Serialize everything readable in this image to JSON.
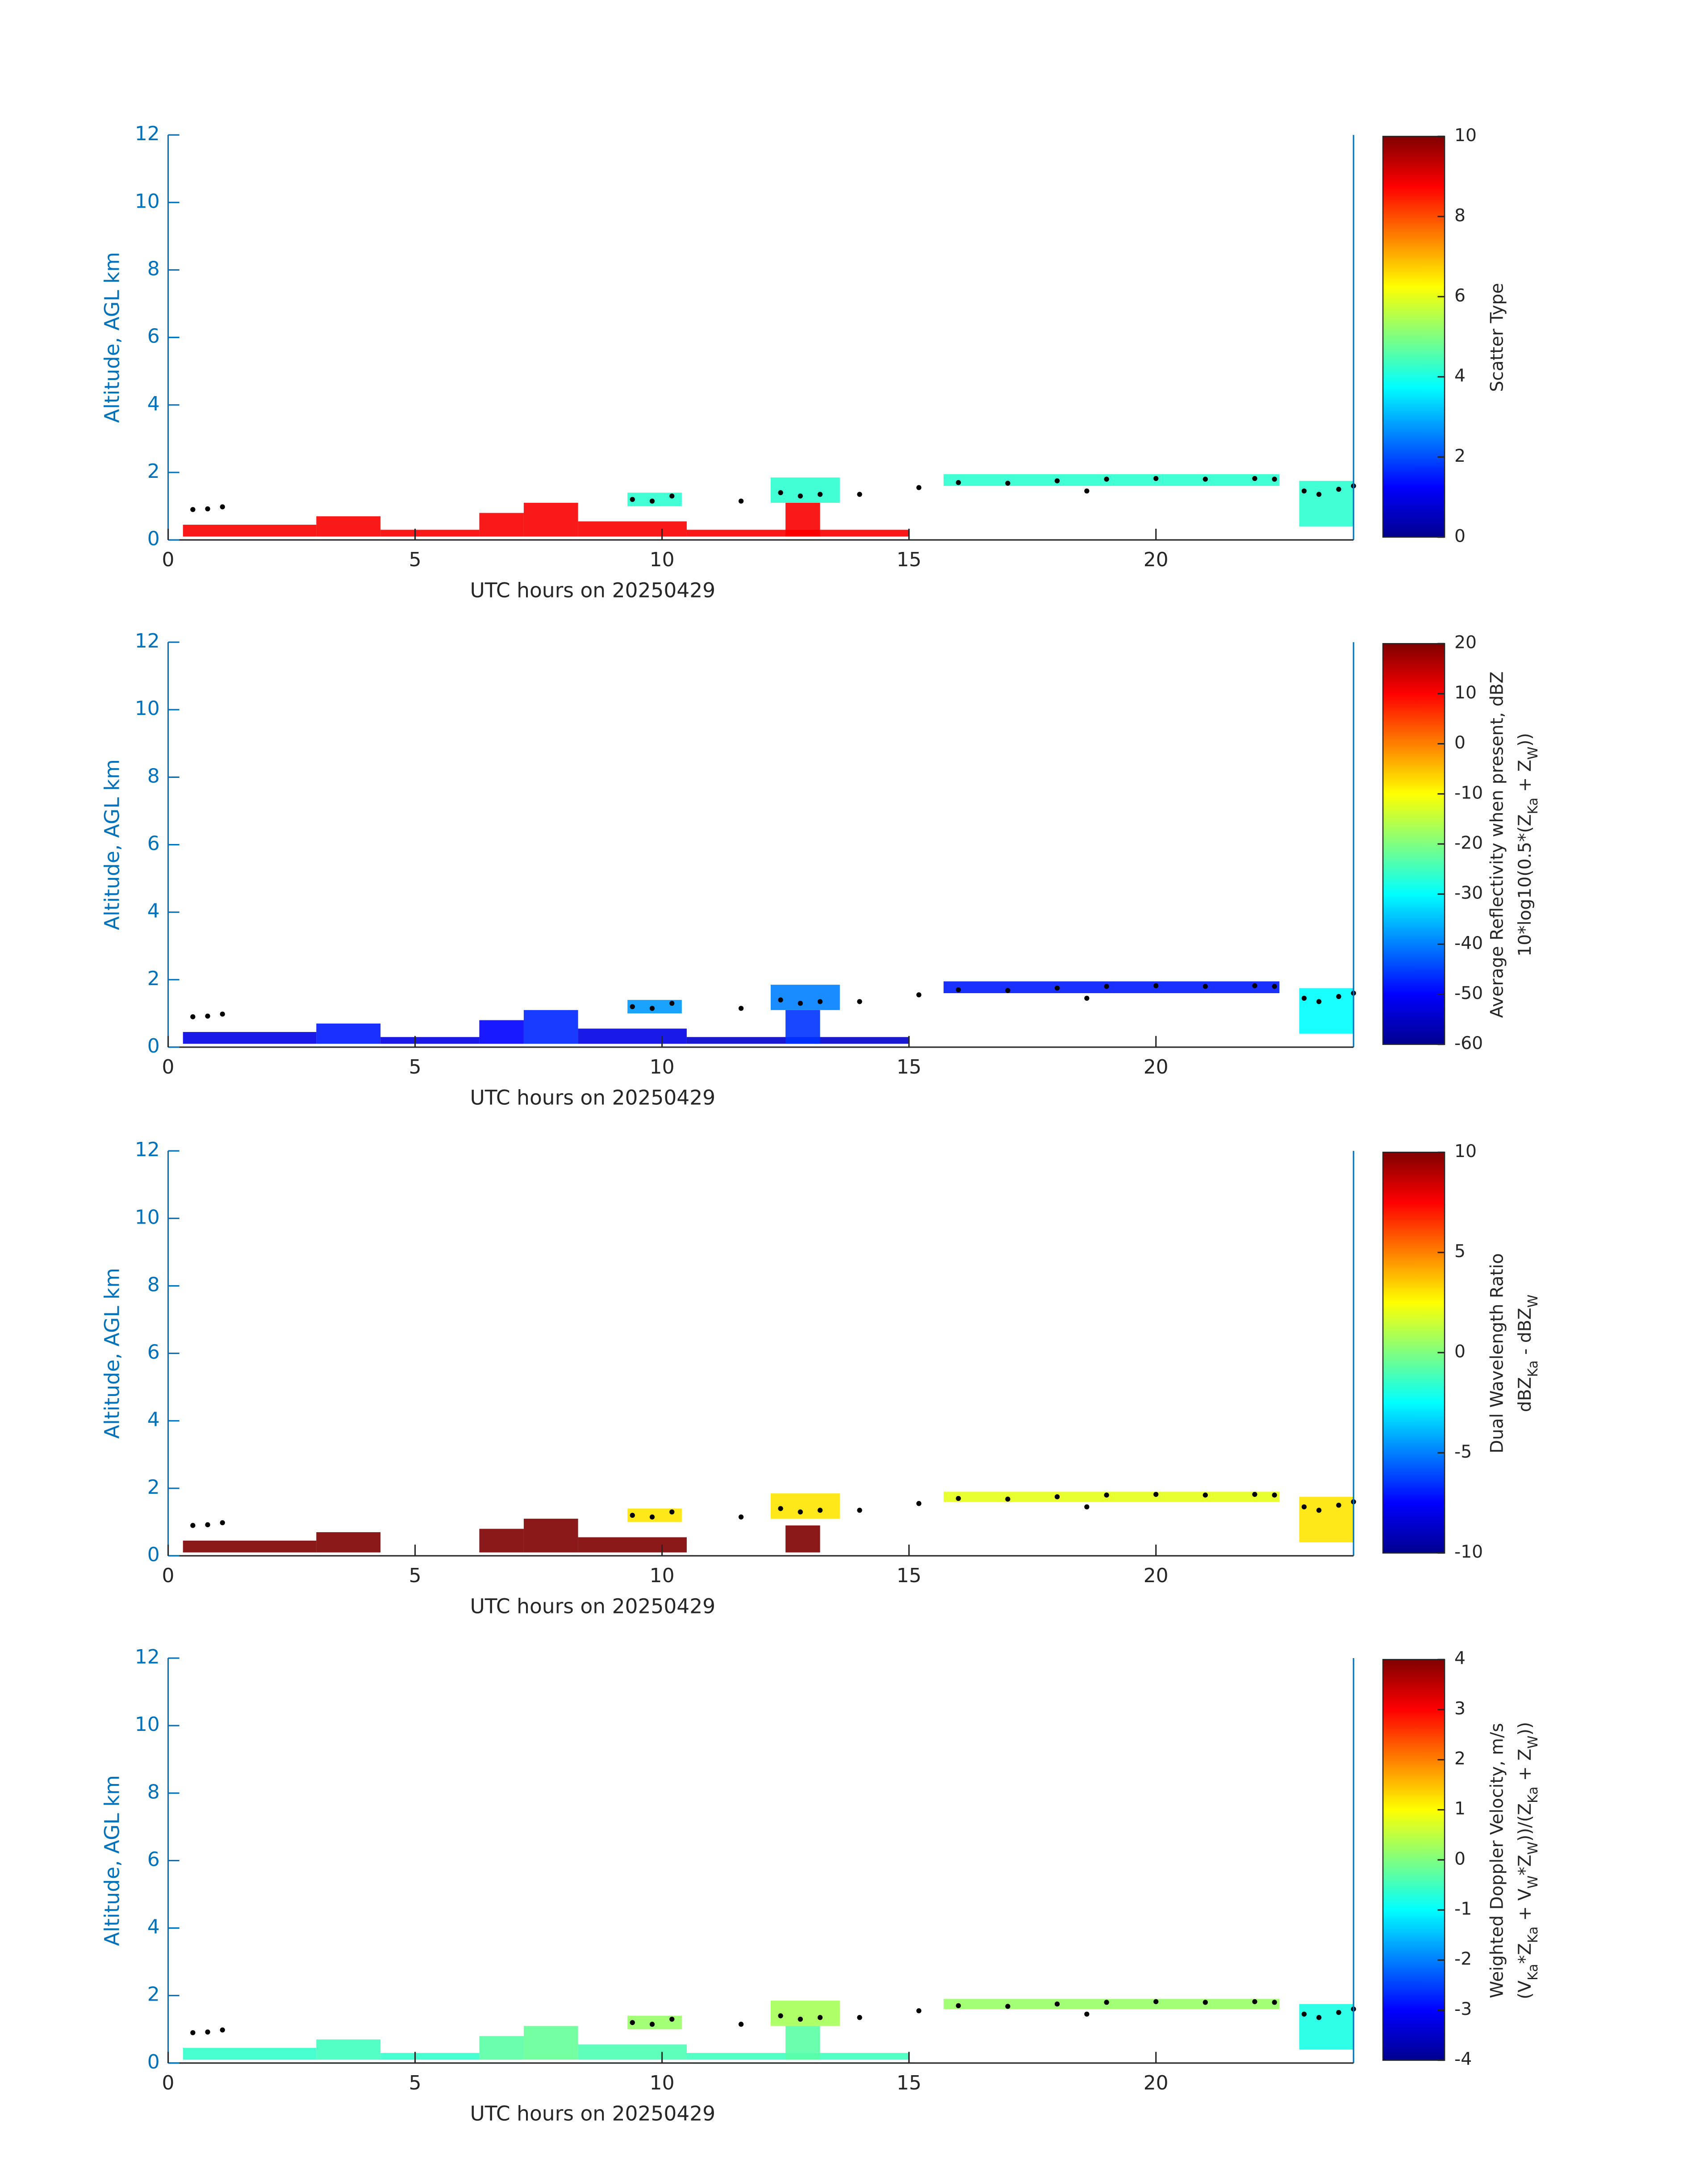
{
  "chart_data": [
    {
      "type": "heatmap",
      "colormap": "jet",
      "xlabel": "UTC hours on 20250429",
      "ylabel": "Altitude, AGL km",
      "colorbar_label": [
        [
          {
            "text": "Scatter Type"
          }
        ]
      ],
      "xlim": [
        0,
        24
      ],
      "xticks": [
        0,
        5,
        10,
        15,
        20
      ],
      "ylim": [
        0,
        12
      ],
      "yticks": [
        0,
        2,
        4,
        6,
        8,
        10,
        12
      ],
      "clim": [
        0,
        10
      ],
      "cticks": [
        0,
        2,
        4,
        6,
        8,
        10
      ],
      "cells": [
        {
          "x": [
            0.3,
            3.0
          ],
          "y": [
            0.1,
            0.45
          ],
          "value": 8.8
        },
        {
          "x": [
            3.0,
            4.3
          ],
          "y": [
            0.1,
            0.7
          ],
          "value": 8.8
        },
        {
          "x": [
            4.3,
            6.3
          ],
          "y": [
            0.1,
            0.3
          ],
          "value": 8.8
        },
        {
          "x": [
            6.3,
            7.2
          ],
          "y": [
            0.1,
            0.8
          ],
          "value": 8.8
        },
        {
          "x": [
            7.2,
            8.3
          ],
          "y": [
            0.1,
            1.1
          ],
          "value": 8.8
        },
        {
          "x": [
            8.3,
            10.5
          ],
          "y": [
            0.1,
            0.55
          ],
          "value": 8.8
        },
        {
          "x": [
            10.5,
            15.0
          ],
          "y": [
            0.1,
            0.3
          ],
          "value": 8.8
        },
        {
          "x": [
            12.5,
            13.2
          ],
          "y": [
            0.1,
            1.1
          ],
          "value": 8.8
        },
        {
          "x": [
            9.3,
            10.4
          ],
          "y": [
            1.0,
            1.4
          ],
          "value": 4.2
        },
        {
          "x": [
            12.2,
            13.6
          ],
          "y": [
            1.1,
            1.85
          ],
          "value": 4.2
        },
        {
          "x": [
            15.7,
            22.5
          ],
          "y": [
            1.6,
            1.95
          ],
          "value": 4.2
        },
        {
          "x": [
            22.9,
            24.0
          ],
          "y": [
            0.4,
            1.75
          ],
          "value": 4.2
        }
      ],
      "points": {
        "color": "#000000",
        "x": [
          0.5,
          0.8,
          1.1,
          9.4,
          9.8,
          10.2,
          11.6,
          12.4,
          12.8,
          13.2,
          14.0,
          15.2,
          16.0,
          17.0,
          18.0,
          18.6,
          19.0,
          20.0,
          21.0,
          22.0,
          22.4,
          23.0,
          23.3,
          23.7,
          24.0
        ],
        "y": [
          0.9,
          0.92,
          0.98,
          1.2,
          1.15,
          1.3,
          1.15,
          1.4,
          1.3,
          1.35,
          1.35,
          1.55,
          1.7,
          1.68,
          1.75,
          1.45,
          1.8,
          1.82,
          1.8,
          1.82,
          1.8,
          1.45,
          1.35,
          1.5,
          1.6
        ]
      }
    },
    {
      "type": "heatmap",
      "colormap": "jet",
      "xlabel": "UTC hours on 20250429",
      "ylabel": "Altitude, AGL km",
      "colorbar_label": [
        [
          {
            "text": "Average Reflectivity when present, dBZ"
          }
        ],
        [
          {
            "text": "10*log10(0.5*(Z"
          },
          {
            "text": "Ka",
            "sub": true
          },
          {
            "text": " + Z"
          },
          {
            "text": "W",
            "sub": true
          },
          {
            "text": "))"
          }
        ]
      ],
      "xlim": [
        0,
        24
      ],
      "xticks": [
        0,
        5,
        10,
        15,
        20
      ],
      "ylim": [
        0,
        12
      ],
      "yticks": [
        0,
        2,
        4,
        6,
        8,
        10,
        12
      ],
      "clim": [
        -60,
        20
      ],
      "cticks": [
        -60,
        -50,
        -40,
        -30,
        -20,
        -10,
        0,
        10,
        20
      ],
      "cells": [
        {
          "x": [
            0.3,
            3.0
          ],
          "y": [
            0.1,
            0.45
          ],
          "value": -52
        },
        {
          "x": [
            3.0,
            4.3
          ],
          "y": [
            0.1,
            0.7
          ],
          "value": -48
        },
        {
          "x": [
            4.3,
            6.3
          ],
          "y": [
            0.1,
            0.3
          ],
          "value": -52
        },
        {
          "x": [
            6.3,
            7.2
          ],
          "y": [
            0.1,
            0.8
          ],
          "value": -50
        },
        {
          "x": [
            7.2,
            8.3
          ],
          "y": [
            0.1,
            1.1
          ],
          "value": -47
        },
        {
          "x": [
            8.3,
            10.5
          ],
          "y": [
            0.1,
            0.55
          ],
          "value": -52
        },
        {
          "x": [
            10.5,
            15.0
          ],
          "y": [
            0.1,
            0.3
          ],
          "value": -54
        },
        {
          "x": [
            12.5,
            13.2
          ],
          "y": [
            0.1,
            1.1
          ],
          "value": -46
        },
        {
          "x": [
            9.3,
            10.4
          ],
          "y": [
            1.0,
            1.4
          ],
          "value": -38
        },
        {
          "x": [
            12.2,
            13.6
          ],
          "y": [
            1.1,
            1.85
          ],
          "value": -40
        },
        {
          "x": [
            15.7,
            22.5
          ],
          "y": [
            1.6,
            1.95
          ],
          "value": -48
        },
        {
          "x": [
            22.9,
            24.0
          ],
          "y": [
            0.4,
            1.75
          ],
          "value": -30
        }
      ],
      "points": {
        "color": "#000000",
        "x": [
          0.5,
          0.8,
          1.1,
          9.4,
          9.8,
          10.2,
          11.6,
          12.4,
          12.8,
          13.2,
          14.0,
          15.2,
          16.0,
          17.0,
          18.0,
          18.6,
          19.0,
          20.0,
          21.0,
          22.0,
          22.4,
          23.0,
          23.3,
          23.7,
          24.0
        ],
        "y": [
          0.9,
          0.92,
          0.98,
          1.2,
          1.15,
          1.3,
          1.15,
          1.4,
          1.3,
          1.35,
          1.35,
          1.55,
          1.7,
          1.68,
          1.75,
          1.45,
          1.8,
          1.82,
          1.8,
          1.82,
          1.8,
          1.45,
          1.35,
          1.5,
          1.6
        ]
      }
    },
    {
      "type": "heatmap",
      "colormap": "jet",
      "xlabel": "UTC hours on 20250429",
      "ylabel": "Altitude, AGL km",
      "colorbar_label": [
        [
          {
            "text": "Dual Wavelength Ratio"
          }
        ],
        [
          {
            "text": "dBZ"
          },
          {
            "text": "Ka",
            "sub": true
          },
          {
            "text": " - dBZ"
          },
          {
            "text": "W",
            "sub": true
          }
        ]
      ],
      "xlim": [
        0,
        24
      ],
      "xticks": [
        0,
        5,
        10,
        15,
        20
      ],
      "ylim": [
        0,
        12
      ],
      "yticks": [
        0,
        2,
        4,
        6,
        8,
        10,
        12
      ],
      "clim": [
        -10,
        10
      ],
      "cticks": [
        -10,
        -5,
        0,
        5,
        10
      ],
      "cells": [
        {
          "x": [
            0.3,
            3.0
          ],
          "y": [
            0.1,
            0.45
          ],
          "value": 10
        },
        {
          "x": [
            3.0,
            4.3
          ],
          "y": [
            0.1,
            0.7
          ],
          "value": 10
        },
        {
          "x": [
            6.3,
            7.2
          ],
          "y": [
            0.1,
            0.8
          ],
          "value": 10
        },
        {
          "x": [
            7.2,
            8.3
          ],
          "y": [
            0.1,
            1.1
          ],
          "value": 10
        },
        {
          "x": [
            8.3,
            10.5
          ],
          "y": [
            0.1,
            0.55
          ],
          "value": 10
        },
        {
          "x": [
            12.5,
            13.2
          ],
          "y": [
            0.1,
            0.9
          ],
          "value": 10
        },
        {
          "x": [
            9.3,
            10.4
          ],
          "y": [
            1.0,
            1.4
          ],
          "value": 3
        },
        {
          "x": [
            12.2,
            13.6
          ],
          "y": [
            1.1,
            1.85
          ],
          "value": 3
        },
        {
          "x": [
            15.7,
            22.5
          ],
          "y": [
            1.6,
            1.9
          ],
          "value": 2
        },
        {
          "x": [
            22.9,
            24.0
          ],
          "y": [
            0.4,
            1.75
          ],
          "value": 3
        }
      ],
      "points": {
        "color": "#000000",
        "x": [
          0.5,
          0.8,
          1.1,
          9.4,
          9.8,
          10.2,
          11.6,
          12.4,
          12.8,
          13.2,
          14.0,
          15.2,
          16.0,
          17.0,
          18.0,
          18.6,
          19.0,
          20.0,
          21.0,
          22.0,
          22.4,
          23.0,
          23.3,
          23.7,
          24.0
        ],
        "y": [
          0.9,
          0.92,
          0.98,
          1.2,
          1.15,
          1.3,
          1.15,
          1.4,
          1.3,
          1.35,
          1.35,
          1.55,
          1.7,
          1.68,
          1.75,
          1.45,
          1.8,
          1.82,
          1.8,
          1.82,
          1.8,
          1.45,
          1.35,
          1.5,
          1.6
        ]
      }
    },
    {
      "type": "heatmap",
      "colormap": "jet",
      "xlabel": "UTC hours on 20250429",
      "ylabel": "Altitude, AGL km",
      "colorbar_label": [
        [
          {
            "text": "Weighted Doppler Velocity, m/s"
          }
        ],
        [
          {
            "text": "(V"
          },
          {
            "text": "Ka",
            "sub": true
          },
          {
            "text": "*Z"
          },
          {
            "text": "Ka",
            "sub": true
          },
          {
            "text": " + V"
          },
          {
            "text": "W",
            "sub": true
          },
          {
            "text": "*Z"
          },
          {
            "text": "W",
            "sub": true
          },
          {
            "text": "))/(Z"
          },
          {
            "text": "Ka",
            "sub": true
          },
          {
            "text": " + Z"
          },
          {
            "text": "W",
            "sub": true
          },
          {
            "text": "))"
          }
        ]
      ],
      "xlim": [
        0,
        24
      ],
      "xticks": [
        0,
        5,
        10,
        15,
        20
      ],
      "ylim": [
        0,
        12
      ],
      "yticks": [
        0,
        2,
        4,
        6,
        8,
        10,
        12
      ],
      "clim": [
        -4,
        4
      ],
      "cticks": [
        -4,
        -3,
        -2,
        -1,
        0,
        1,
        2,
        3,
        4
      ],
      "cells": [
        {
          "x": [
            0.3,
            3.0
          ],
          "y": [
            0.1,
            0.45
          ],
          "value": -0.6
        },
        {
          "x": [
            3.0,
            4.3
          ],
          "y": [
            0.1,
            0.7
          ],
          "value": -0.5
        },
        {
          "x": [
            4.3,
            6.3
          ],
          "y": [
            0.1,
            0.3
          ],
          "value": -0.6
        },
        {
          "x": [
            6.3,
            7.2
          ],
          "y": [
            0.1,
            0.8
          ],
          "value": -0.3
        },
        {
          "x": [
            7.2,
            8.3
          ],
          "y": [
            0.1,
            1.1
          ],
          "value": -0.2
        },
        {
          "x": [
            8.3,
            10.5
          ],
          "y": [
            0.1,
            0.55
          ],
          "value": -0.4
        },
        {
          "x": [
            10.5,
            15.0
          ],
          "y": [
            0.1,
            0.3
          ],
          "value": -0.5
        },
        {
          "x": [
            12.5,
            13.2
          ],
          "y": [
            0.1,
            1.1
          ],
          "value": -0.3
        },
        {
          "x": [
            9.3,
            10.4
          ],
          "y": [
            1.0,
            1.4
          ],
          "value": 0.2
        },
        {
          "x": [
            12.2,
            13.6
          ],
          "y": [
            1.1,
            1.85
          ],
          "value": 0.3
        },
        {
          "x": [
            15.7,
            22.5
          ],
          "y": [
            1.6,
            1.9
          ],
          "value": 0.2
        },
        {
          "x": [
            22.9,
            24.0
          ],
          "y": [
            0.4,
            1.75
          ],
          "value": -0.8
        }
      ],
      "points": {
        "color": "#000000",
        "x": [
          0.5,
          0.8,
          1.1,
          9.4,
          9.8,
          10.2,
          11.6,
          12.4,
          12.8,
          13.2,
          14.0,
          15.2,
          16.0,
          17.0,
          18.0,
          18.6,
          19.0,
          20.0,
          21.0,
          22.0,
          22.4,
          23.0,
          23.3,
          23.7,
          24.0
        ],
        "y": [
          0.9,
          0.92,
          0.98,
          1.2,
          1.15,
          1.3,
          1.15,
          1.4,
          1.3,
          1.35,
          1.35,
          1.55,
          1.7,
          1.68,
          1.75,
          1.45,
          1.8,
          1.82,
          1.8,
          1.82,
          1.8,
          1.45,
          1.35,
          1.5,
          1.6
        ]
      }
    }
  ]
}
